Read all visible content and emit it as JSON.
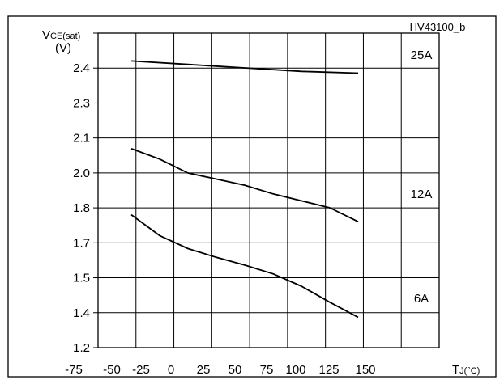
{
  "figure_code": "HV43100_b",
  "chart_data": {
    "type": "line",
    "ylabel_main": "V",
    "ylabel_sub": "CE(sat)",
    "ylabel_unit": "(V)",
    "xlabel_main": "T",
    "xlabel_sub": "J",
    "xlabel_unit": "(°C)",
    "x_ticks": [
      "-75",
      "-50",
      "-25",
      "0",
      "25",
      "50",
      "75",
      "100",
      "125",
      "150"
    ],
    "y_ticks": [
      "1.2",
      "1.4",
      "1.5",
      "1.7",
      "1.8",
      "2.0",
      "2.1",
      "2.3",
      "2.4"
    ],
    "xlim": [
      -75,
      150
    ],
    "ylim": [
      1.2,
      2.4
    ],
    "series": [
      {
        "name": "25A",
        "x": [
          -50,
          0,
          50,
          100,
          150
        ],
        "y": [
          2.42,
          2.41,
          2.4,
          2.39,
          2.385
        ]
      },
      {
        "name": "12A",
        "x": [
          -50,
          -25,
          0,
          25,
          50,
          75,
          100,
          125,
          150
        ],
        "y": [
          2.07,
          2.04,
          2.0,
          1.965,
          1.93,
          1.88,
          1.84,
          1.8,
          1.76
        ]
      },
      {
        "name": "6A",
        "x": [
          -50,
          -25,
          0,
          25,
          50,
          75,
          100,
          125,
          150
        ],
        "y": [
          1.78,
          1.72,
          1.665,
          1.615,
          1.57,
          1.52,
          1.475,
          1.43,
          1.375
        ]
      }
    ]
  }
}
